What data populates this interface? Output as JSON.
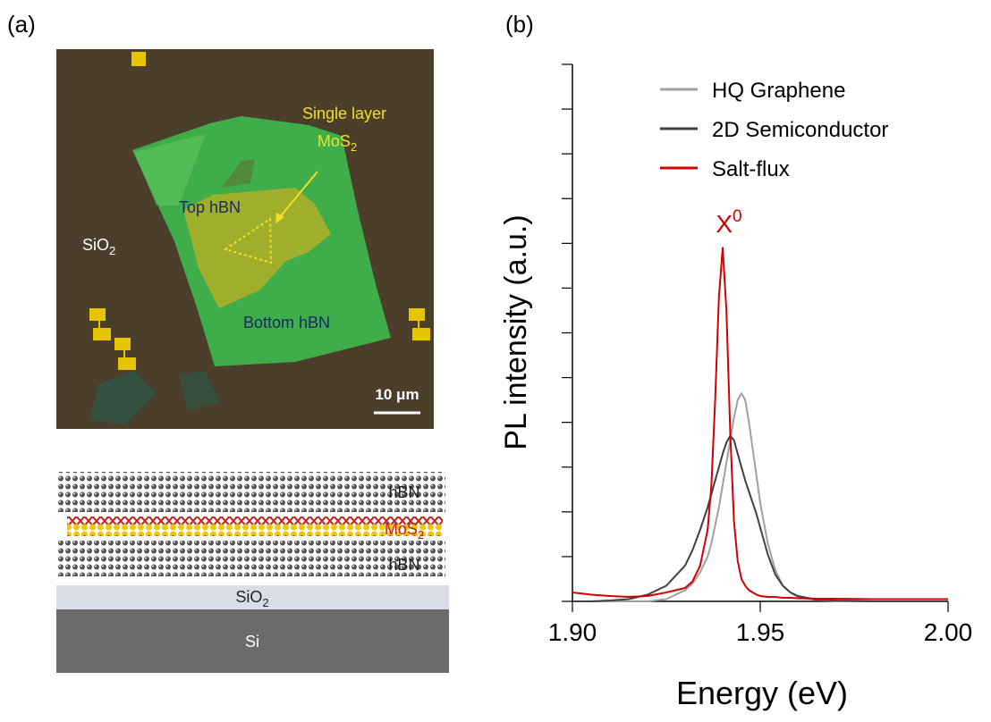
{
  "panels": [
    "(a)",
    "(b)"
  ],
  "micrograph": {
    "labels": {
      "single_layer": "Single layer",
      "mos2": {
        "text": "MoS",
        "sub": "2"
      },
      "top_hbn": "Top hBN",
      "sio2": {
        "text": "SiO",
        "sub": "2"
      },
      "bottom_hbn": "Bottom hBN",
      "scale_bar": "10 μm"
    }
  },
  "schematic": {
    "labels": {
      "top_hbn": "hBN",
      "mos2": {
        "text": "MoS",
        "sub": "2"
      },
      "bottom_hbn": "hBN",
      "sio2": {
        "text": "SiO",
        "sub": "2"
      },
      "si": "Si"
    }
  },
  "chart_data": {
    "type": "line",
    "xlabel": "Energy (eV)",
    "ylabel": "PL intensity (a.u.)",
    "annotation": {
      "text": "X",
      "sup": "0"
    },
    "xlim": [
      1.9,
      2.0
    ],
    "xticks": [
      {
        "value": 1.9,
        "label": "1.90"
      },
      {
        "value": 1.95,
        "label": "1.95"
      },
      {
        "value": 2.0,
        "label": "2.00"
      }
    ],
    "ylim": [
      0,
      12
    ],
    "yticks": [
      0,
      1,
      2,
      3,
      4,
      5,
      6,
      7,
      8,
      9,
      10,
      11,
      12
    ],
    "ytick_labels": false,
    "legend": "top-center",
    "x": [
      1.9,
      1.905,
      1.91,
      1.915,
      1.92,
      1.925,
      1.93,
      1.932,
      1.934,
      1.936,
      1.937,
      1.938,
      1.939,
      1.94,
      1.941,
      1.942,
      1.943,
      1.944,
      1.945,
      1.946,
      1.947,
      1.948,
      1.949,
      1.95,
      1.952,
      1.954,
      1.956,
      1.958,
      1.96,
      1.965,
      1.97,
      1.98,
      1.99,
      2.0
    ],
    "series": [
      {
        "name": "HQ Graphene",
        "color": "#a0a0a0",
        "values": [
          0,
          0,
          0,
          0,
          0,
          0.05,
          0.25,
          0.4,
          0.65,
          1.0,
          1.3,
          1.7,
          2.1,
          2.6,
          3.1,
          3.6,
          4.1,
          4.5,
          4.65,
          4.5,
          4.0,
          3.4,
          2.8,
          2.2,
          1.3,
          0.7,
          0.35,
          0.2,
          0.1,
          0.03,
          0.01,
          0,
          0,
          0
        ]
      },
      {
        "name": "2D Semiconductor",
        "color": "#404040",
        "values": [
          0,
          0,
          0.02,
          0.05,
          0.15,
          0.35,
          0.8,
          1.15,
          1.6,
          2.1,
          2.4,
          2.7,
          3.0,
          3.3,
          3.55,
          3.7,
          3.6,
          3.3,
          3.0,
          2.7,
          2.45,
          2.2,
          1.95,
          1.65,
          1.05,
          0.6,
          0.35,
          0.2,
          0.12,
          0.04,
          0.02,
          0,
          0,
          0
        ]
      },
      {
        "name": "Salt-flux",
        "color": "#d40000",
        "values": [
          0.2,
          0.15,
          0.12,
          0.1,
          0.12,
          0.2,
          0.3,
          0.45,
          0.8,
          1.6,
          2.6,
          4.5,
          6.8,
          7.9,
          6.5,
          3.8,
          1.8,
          0.9,
          0.5,
          0.35,
          0.25,
          0.2,
          0.15,
          0.12,
          0.1,
          0.1,
          0.08,
          0.08,
          0.07,
          0.06,
          0.06,
          0.05,
          0.05,
          0.05
        ]
      }
    ]
  }
}
